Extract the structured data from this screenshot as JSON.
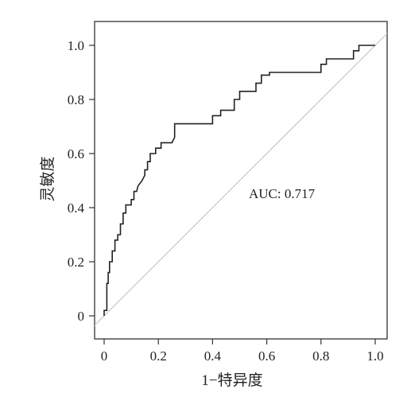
{
  "chart_data": {
    "type": "line",
    "title": "",
    "xlabel": "1−特异度",
    "ylabel": "灵敏度",
    "xlim": [
      0,
      1.0
    ],
    "ylim": [
      0,
      1.0
    ],
    "x_ticks": [
      "0",
      "0.2",
      "0.4",
      "0.6",
      "0.8",
      "1.0"
    ],
    "y_ticks": [
      "0",
      "0.2",
      "0.4",
      "0.6",
      "0.8",
      "1.0"
    ],
    "grid": false,
    "legend": "none",
    "annotation": "AUC: 0.717",
    "series": [
      {
        "style": "step",
        "color": "#222222",
        "x": [
          0,
          0,
          0.01,
          0.01,
          0.015,
          0.015,
          0.02,
          0.02,
          0.03,
          0.03,
          0.04,
          0.04,
          0.05,
          0.05,
          0.06,
          0.06,
          0.07,
          0.07,
          0.08,
          0.08,
          0.1,
          0.1,
          0.11,
          0.11,
          0.12,
          0.125,
          0.14,
          0.15,
          0.15,
          0.16,
          0.16,
          0.17,
          0.17,
          0.19,
          0.19,
          0.21,
          0.21,
          0.25,
          0.26,
          0.26,
          0.4,
          0.4,
          0.43,
          0.43,
          0.48,
          0.48,
          0.5,
          0.5,
          0.56,
          0.56,
          0.58,
          0.58,
          0.61,
          0.61,
          0.8,
          0.8,
          0.82,
          0.82,
          0.92,
          0.92,
          0.94,
          0.94,
          1.0
        ],
        "y": [
          0,
          0.02,
          0.02,
          0.12,
          0.12,
          0.16,
          0.16,
          0.2,
          0.2,
          0.24,
          0.24,
          0.28,
          0.28,
          0.3,
          0.3,
          0.34,
          0.34,
          0.38,
          0.38,
          0.41,
          0.41,
          0.43,
          0.43,
          0.46,
          0.46,
          0.48,
          0.5,
          0.52,
          0.54,
          0.54,
          0.57,
          0.57,
          0.6,
          0.6,
          0.62,
          0.62,
          0.64,
          0.64,
          0.66,
          0.71,
          0.71,
          0.74,
          0.74,
          0.76,
          0.76,
          0.8,
          0.8,
          0.83,
          0.83,
          0.86,
          0.86,
          0.89,
          0.89,
          0.9,
          0.9,
          0.93,
          0.93,
          0.95,
          0.95,
          0.98,
          0.98,
          1.0,
          1.0
        ]
      }
    ],
    "reference_line": {
      "color": "#c8c8c8",
      "x": [
        -0.05,
        1.05
      ],
      "y": [
        -0.05,
        1.05
      ]
    }
  }
}
